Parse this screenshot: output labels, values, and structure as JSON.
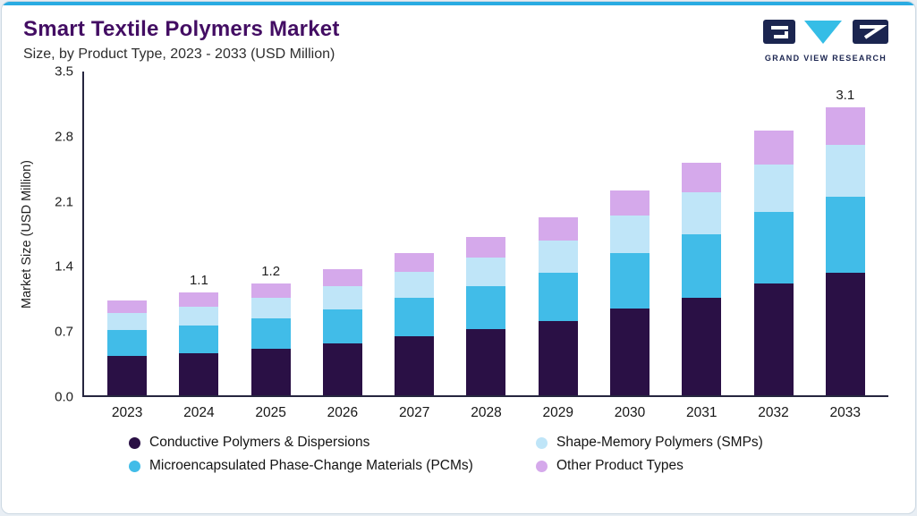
{
  "header": {
    "title": "Smart Textile Polymers Market",
    "subtitle": "Size, by Product Type, 2023 - 2033 (USD Million)",
    "logo_text": "GRAND VIEW RESEARCH"
  },
  "chart_data": {
    "type": "bar",
    "stacked": true,
    "title": "Smart Textile Polymers Market Size, by Product Type, 2023 - 2033 (USD Million)",
    "xlabel": "",
    "ylabel": "Market Size (USD Million)",
    "ylim": [
      0,
      3.5
    ],
    "yticks": [
      "0.0",
      "0.7",
      "1.4",
      "2.1",
      "2.8",
      "3.5"
    ],
    "grid": false,
    "legend_position": "bottom",
    "categories": [
      "2023",
      "2024",
      "2025",
      "2026",
      "2027",
      "2028",
      "2029",
      "2030",
      "2031",
      "2032",
      "2033"
    ],
    "bar_total_labels": {
      "2024": "1.1",
      "2025": "1.2",
      "2033": "3.1"
    },
    "series": [
      {
        "name": "Conductive Polymers & Dispersions",
        "color": "#2a1045",
        "values": [
          0.42,
          0.45,
          0.5,
          0.56,
          0.63,
          0.71,
          0.8,
          0.93,
          1.05,
          1.2,
          1.32
        ]
      },
      {
        "name": "Microencapsulated Phase-Change Materials (PCMs)",
        "color": "#41bce8",
        "values": [
          0.28,
          0.3,
          0.33,
          0.37,
          0.41,
          0.46,
          0.52,
          0.6,
          0.68,
          0.77,
          0.82
        ]
      },
      {
        "name": "Shape-Memory Polymers (SMPs)",
        "color": "#bfe5f8",
        "values": [
          0.18,
          0.2,
          0.22,
          0.25,
          0.28,
          0.31,
          0.35,
          0.4,
          0.45,
          0.51,
          0.56
        ]
      },
      {
        "name": "Other Product Types",
        "color": "#d5a9eb",
        "values": [
          0.13,
          0.15,
          0.15,
          0.18,
          0.2,
          0.22,
          0.25,
          0.27,
          0.32,
          0.37,
          0.4
        ]
      }
    ]
  },
  "legend": {
    "items": [
      {
        "label": "Conductive Polymers & Dispersions",
        "color": "#2a1045"
      },
      {
        "label": "Shape-Memory Polymers (SMPs)",
        "color": "#bfe5f8"
      },
      {
        "label": "Microencapsulated Phase-Change Materials (PCMs)",
        "color": "#41bce8"
      },
      {
        "label": "Other Product Types",
        "color": "#d5a9eb"
      }
    ]
  }
}
